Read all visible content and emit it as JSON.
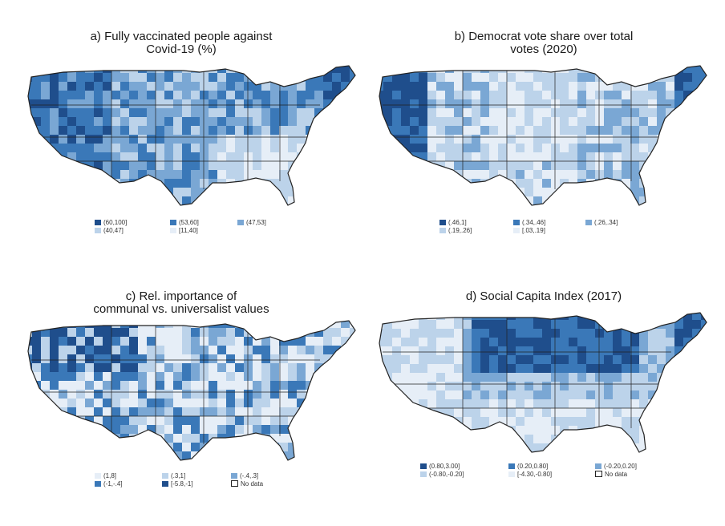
{
  "colors": {
    "c1": "#1f4e8c",
    "c2": "#3a78b8",
    "c3": "#7aa7d4",
    "c4": "#bcd3ea",
    "c5": "#e6eef7",
    "nodata": "#ffffff",
    "border": "#222222"
  },
  "panels": [
    {
      "title_lines": [
        "a) Fully vaccinated people against",
        "Covid-19 (%)"
      ],
      "legend": [
        {
          "label": "(60,100]",
          "color": "#1f4e8c"
        },
        {
          "label": "(53,60]",
          "color": "#3a78b8"
        },
        {
          "label": "(47,53]",
          "color": "#7aa7d4"
        },
        {
          "label": "(40,47]",
          "color": "#bcd3ea"
        },
        {
          "label": "[11,40]",
          "color": "#e6eef7"
        }
      ],
      "pattern": "vacc"
    },
    {
      "title_lines": [
        "b) Democrat vote share over total",
        "votes (2020)"
      ],
      "legend": [
        {
          "label": "(.46,1]",
          "color": "#1f4e8c"
        },
        {
          "label": "(.34,.46]",
          "color": "#3a78b8"
        },
        {
          "label": "(.26,.34]",
          "color": "#7aa7d4"
        },
        {
          "label": "(.19,.26]",
          "color": "#bcd3ea"
        },
        {
          "label": "[.03,.19]",
          "color": "#e6eef7"
        }
      ],
      "pattern": "dem"
    },
    {
      "title_lines": [
        "c) Rel. importance of",
        "communal vs. universalist values"
      ],
      "legend": [
        {
          "label": "(1,8]",
          "color": "#e6eef7"
        },
        {
          "label": "(.3,1]",
          "color": "#bcd3ea"
        },
        {
          "label": "(-.4,.3]",
          "color": "#7aa7d4"
        },
        {
          "label": "(-1,-.4]",
          "color": "#3a78b8"
        },
        {
          "label": "[-5.8,-1]",
          "color": "#1f4e8c"
        },
        {
          "label": "No data",
          "color": "#ffffff",
          "nodata": true
        }
      ],
      "pattern": "values"
    },
    {
      "title_lines": [
        "d) Social Capita Index (2017)"
      ],
      "legend": [
        {
          "label": "(0.80,3.00]",
          "color": "#1f4e8c"
        },
        {
          "label": "(0.20,0.80]",
          "color": "#3a78b8"
        },
        {
          "label": "(-0.20,0.20]",
          "color": "#7aa7d4"
        },
        {
          "label": "(-0.80,-0.20]",
          "color": "#bcd3ea"
        },
        {
          "label": "[-4.30,-0.80]",
          "color": "#e6eef7"
        },
        {
          "label": "No data",
          "color": "#ffffff",
          "nodata": true
        }
      ],
      "pattern": "social"
    }
  ]
}
